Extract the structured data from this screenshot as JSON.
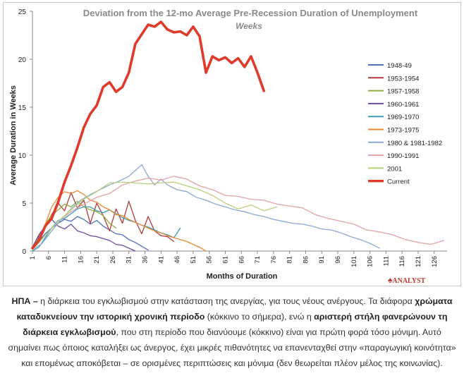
{
  "chart_data": {
    "type": "line",
    "title": "Deviation from the 12-mo Average Pre-Recession Duration of Unemployment",
    "subtitle": "Weeks",
    "xlabel": "Months of Duration",
    "ylabel": "Average Duration in Weeks",
    "xlim": [
      1,
      130
    ],
    "ylim": [
      0,
      25
    ],
    "xticks": [
      1,
      6,
      11,
      16,
      21,
      26,
      31,
      36,
      41,
      46,
      51,
      56,
      61,
      66,
      71,
      76,
      81,
      86,
      91,
      96,
      101,
      106,
      111,
      116,
      121,
      126
    ],
    "yticks": [
      0,
      5,
      10,
      15,
      20,
      25
    ],
    "legend_position": "right",
    "series": [
      {
        "name": "1948-49",
        "color": "#4a72b8",
        "width": 1.3,
        "x": [
          1,
          3,
          5,
          7,
          9,
          11,
          13,
          15,
          17,
          19,
          21,
          23,
          25,
          27,
          29,
          31,
          33,
          35,
          37
        ],
        "y": [
          0.3,
          1.0,
          1.8,
          2.4,
          2.9,
          3.3,
          3.1,
          3.6,
          3.3,
          2.8,
          3.2,
          2.6,
          2.2,
          1.8,
          1.7,
          1.2,
          0.9,
          0.5,
          0.1
        ]
      },
      {
        "name": "1953-1954",
        "color": "#b03a3a",
        "width": 1.3,
        "x": [
          1,
          3,
          5,
          7,
          9,
          11,
          13,
          15,
          17,
          19,
          21,
          23,
          25,
          27,
          29,
          31,
          33,
          35,
          37,
          39,
          41,
          43,
          45
        ],
        "y": [
          0.2,
          1.5,
          2.6,
          3.8,
          5.0,
          4.2,
          6.1,
          4.5,
          5.3,
          2.9,
          5.0,
          3.7,
          2.1,
          4.4,
          2.9,
          5.2,
          3.2,
          1.8,
          3.6,
          2.1,
          1.6,
          1.5,
          1.0
        ]
      },
      {
        "name": "1957-1958",
        "color": "#8fad3e",
        "width": 1.3,
        "x": [
          1,
          3,
          5,
          7,
          9,
          11,
          13,
          15,
          17,
          19,
          21,
          23,
          25,
          27
        ],
        "y": [
          0.4,
          1.4,
          2.8,
          3.7,
          4.3,
          4.9,
          4.6,
          5.2,
          4.6,
          4.3,
          4.1,
          3.7,
          2.9,
          2.4
        ]
      },
      {
        "name": "1960-1961",
        "color": "#6e4aa0",
        "width": 1.3,
        "x": [
          1,
          3,
          5,
          7,
          9,
          11,
          13,
          15,
          17,
          19,
          21,
          23,
          25,
          27,
          29,
          31,
          33
        ],
        "y": [
          0.4,
          1.7,
          2.6,
          3.3,
          2.6,
          2.3,
          2.8,
          2.1,
          1.9,
          1.6,
          1.5,
          1.3,
          1.1,
          0.7,
          0.6,
          0.3,
          0.0
        ]
      },
      {
        "name": "1969-1970",
        "color": "#3b9db4",
        "width": 1.3,
        "x": [
          1,
          3,
          5,
          7,
          9,
          11,
          13,
          15,
          17,
          19,
          21,
          23,
          25,
          27,
          29,
          31,
          33,
          35,
          37,
          39,
          41,
          43,
          45,
          47
        ],
        "y": [
          0.0,
          0.4,
          1.4,
          2.4,
          3.2,
          3.4,
          3.9,
          4.4,
          4.6,
          4.6,
          4.2,
          4.0,
          4.3,
          3.9,
          3.5,
          3.2,
          3.0,
          2.7,
          2.5,
          2.2,
          1.9,
          1.7,
          1.4,
          2.4
        ]
      },
      {
        "name": "1973-1975",
        "color": "#e98a2d",
        "width": 1.3,
        "x": [
          1,
          3,
          5,
          7,
          9,
          11,
          13,
          15,
          17,
          19,
          21,
          23,
          25,
          27,
          29,
          31,
          33,
          35,
          37,
          39,
          41,
          43,
          45,
          47,
          49,
          51,
          53,
          55
        ],
        "y": [
          0.2,
          1.0,
          2.8,
          4.6,
          5.6,
          6.2,
          6.0,
          6.3,
          5.9,
          5.3,
          5.1,
          4.6,
          4.3,
          3.8,
          3.7,
          3.3,
          3.0,
          2.7,
          2.4,
          2.1,
          1.9,
          1.6,
          1.4,
          1.2,
          1.0,
          0.7,
          0.4,
          0.0
        ]
      },
      {
        "name": "1980 & 1981-1982",
        "color": "#8ba9d2",
        "width": 1.3,
        "x": [
          1,
          4,
          7,
          10,
          13,
          16,
          19,
          22,
          25,
          28,
          31,
          33,
          35,
          37,
          39,
          41,
          43,
          46,
          49,
          52,
          55,
          58,
          61,
          64,
          67,
          70,
          73,
          76,
          79,
          82,
          85,
          88,
          91,
          94,
          97,
          100,
          103,
          106,
          109
        ],
        "y": [
          0.1,
          0.8,
          2.1,
          3.3,
          4.4,
          5.3,
          5.9,
          6.4,
          6.9,
          7.3,
          7.8,
          8.4,
          9.0,
          7.8,
          6.9,
          7.5,
          6.9,
          6.4,
          6.2,
          5.6,
          5.3,
          4.9,
          4.6,
          4.3,
          4.1,
          3.8,
          3.6,
          3.3,
          3.1,
          2.9,
          2.8,
          2.6,
          2.3,
          2.2,
          1.9,
          1.5,
          1.2,
          0.8,
          0.3
        ]
      },
      {
        "name": "1990-1991",
        "color": "#e2a3a3",
        "width": 1.3,
        "x": [
          1,
          5,
          9,
          13,
          17,
          21,
          25,
          29,
          33,
          37,
          41,
          45,
          49,
          53,
          57,
          61,
          65,
          69,
          73,
          77,
          81,
          85,
          89,
          93,
          97,
          101,
          105,
          109,
          113,
          117,
          121,
          125,
          129
        ],
        "y": [
          0.2,
          1.6,
          3.1,
          4.1,
          4.9,
          5.6,
          6.0,
          6.9,
          7.3,
          7.6,
          7.4,
          7.8,
          7.5,
          6.8,
          6.4,
          5.8,
          5.7,
          5.4,
          5.3,
          4.9,
          4.7,
          4.5,
          3.8,
          3.4,
          3.1,
          2.8,
          2.2,
          2.0,
          1.7,
          1.2,
          0.9,
          0.7,
          1.1
        ]
      },
      {
        "name": "2001",
        "color": "#b8d17a",
        "width": 1.3,
        "x": [
          1,
          5,
          9,
          13,
          17,
          21,
          25,
          29,
          33,
          37,
          41,
          45,
          49,
          53,
          57,
          61,
          65,
          69,
          73,
          77
        ],
        "y": [
          0.1,
          1.6,
          3.1,
          4.3,
          5.4,
          6.2,
          7.1,
          7.2,
          7.1,
          7.0,
          7.1,
          7.2,
          6.8,
          6.4,
          5.8,
          5.0,
          4.4,
          4.8,
          4.2,
          4.6
        ]
      },
      {
        "name": "Current",
        "color": "#e03a2a",
        "width": 3.6,
        "x": [
          1,
          3,
          5,
          7,
          9,
          11,
          13,
          15,
          17,
          19,
          21,
          23,
          25,
          27,
          29,
          31,
          33,
          35,
          37,
          39,
          41,
          43,
          45,
          47,
          49,
          51,
          53,
          55,
          57,
          59,
          61,
          63,
          65,
          67,
          69,
          71,
          73
        ],
        "y": [
          0.3,
          1.1,
          2.6,
          3.4,
          5.1,
          7.2,
          8.9,
          10.8,
          12.9,
          14.3,
          15.2,
          17.1,
          17.6,
          16.6,
          17.1,
          18.6,
          21.6,
          22.6,
          23.6,
          23.4,
          23.9,
          23.1,
          22.8,
          22.9,
          22.5,
          23.4,
          22.4,
          18.6,
          20.3,
          19.9,
          20.2,
          19.6,
          20.1,
          19.2,
          20.3,
          18.6,
          16.7
        ]
      }
    ]
  },
  "logo": {
    "text": "ANALYST",
    "mark": "♠"
  },
  "caption": {
    "p1": "ΗΠΑ – ",
    "p2": "η διάρκεια του εγκλωβισμού στην κατάσταση της ανεργίας, για τους νέους ανέργους. Τα διάφορα ",
    "p3": "χρώματα καταδυκνείουν την ιστορική χρονική περίοδο",
    "p4": " (κόκκινο το σήμερα), ενώ η ",
    "p5": "αριστερή στήλη φανερώνουν τη διάρκεια εγκλωβισμού",
    "p6": ", που στη περίοδο που διανύουμε (κόκκινο) είναι για πρώτη φορά τόσο μόνιμη. Αυτό σημαίνει πως όποιος καταλήξει ως άνεργος, έχει μικρές πιθανότητες να επανενταχθεί στην «παραγωγική κοινότητα» και επομένως αποκόβεται – σε ορισμένες περιπτώσεις και μόνιμα (δεν θεωρείται πλέον μέλος της κοινωνίας)."
  }
}
